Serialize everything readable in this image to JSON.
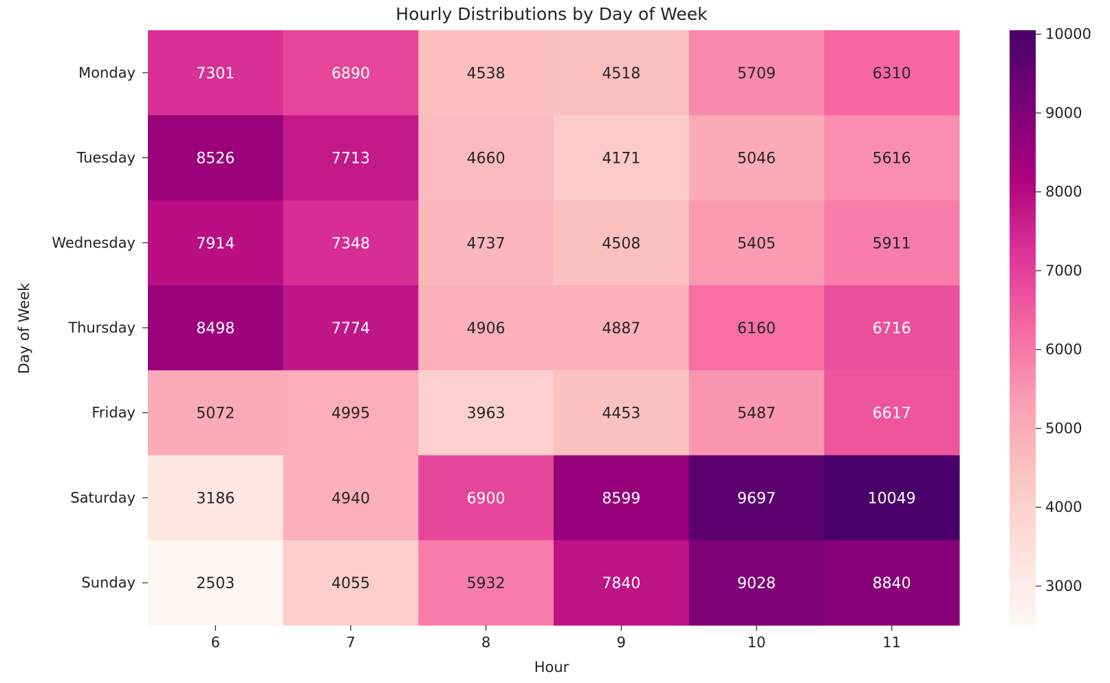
{
  "chart_data": {
    "type": "heatmap",
    "title": "Hourly Distributions by Day of Week",
    "xlabel": "Hour",
    "ylabel": "Day of Week",
    "x": [
      "6",
      "7",
      "8",
      "9",
      "10",
      "11"
    ],
    "y": [
      "Monday",
      "Tuesday",
      "Wednesday",
      "Thursday",
      "Friday",
      "Saturday",
      "Sunday"
    ],
    "values": [
      [
        7301,
        6890,
        4538,
        4518,
        5709,
        6310
      ],
      [
        8526,
        7713,
        4660,
        4171,
        5046,
        5616
      ],
      [
        7914,
        7348,
        4737,
        4508,
        5405,
        5911
      ],
      [
        8498,
        7774,
        4906,
        4887,
        6160,
        6716
      ],
      [
        5072,
        4995,
        3963,
        4453,
        5487,
        6617
      ],
      [
        3186,
        4940,
        6900,
        8599,
        9697,
        10049
      ],
      [
        2503,
        4055,
        5932,
        7840,
        9028,
        8840
      ]
    ],
    "colorbar": {
      "min": 2503,
      "max": 10049,
      "ticks": [
        "3000",
        "4000",
        "5000",
        "6000",
        "7000",
        "8000",
        "9000",
        "10000"
      ]
    },
    "colormap": "RdPu",
    "colormap_stops": [
      "#fff7f3",
      "#fde0dd",
      "#fcc5c0",
      "#fa9fb5",
      "#f768a1",
      "#dd3497",
      "#ae017e",
      "#7a0177",
      "#49006a"
    ]
  }
}
